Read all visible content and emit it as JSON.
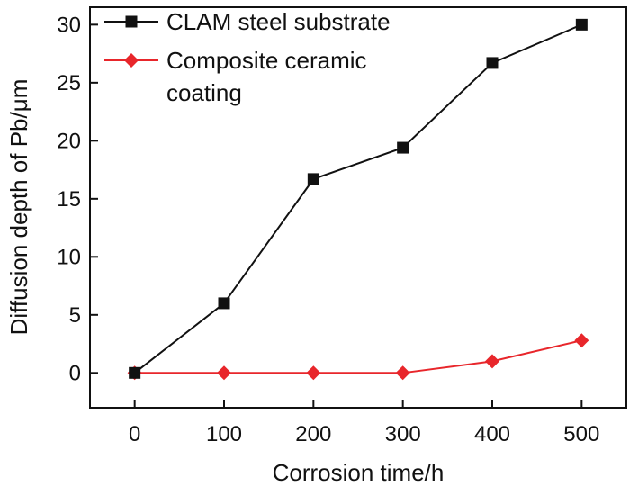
{
  "chart_data": {
    "type": "line",
    "xlabel": "Corrosion time/h",
    "ylabel": "Diffusion depth of Pb/μm",
    "xlim": [
      -50,
      550
    ],
    "ylim": [
      -3,
      31.5
    ],
    "x_ticks": [
      0,
      100,
      200,
      300,
      400,
      500
    ],
    "y_ticks": [
      0,
      5,
      10,
      15,
      20,
      25,
      30
    ],
    "grid": false,
    "legend_position": "top-left",
    "series": [
      {
        "name": "CLAM steel substrate",
        "color": "#111111",
        "marker": "square",
        "x": [
          0,
          100,
          200,
          300,
          400,
          500
        ],
        "y": [
          0,
          6,
          16.7,
          19.4,
          26.7,
          30
        ]
      },
      {
        "name": "Composite ceramic coating",
        "name_lines": [
          "Composite ceramic",
          "coating"
        ],
        "color": "#e8262b",
        "marker": "diamond",
        "x": [
          0,
          100,
          200,
          300,
          400,
          500
        ],
        "y": [
          0,
          0,
          0,
          0,
          1,
          2.8
        ]
      }
    ]
  }
}
